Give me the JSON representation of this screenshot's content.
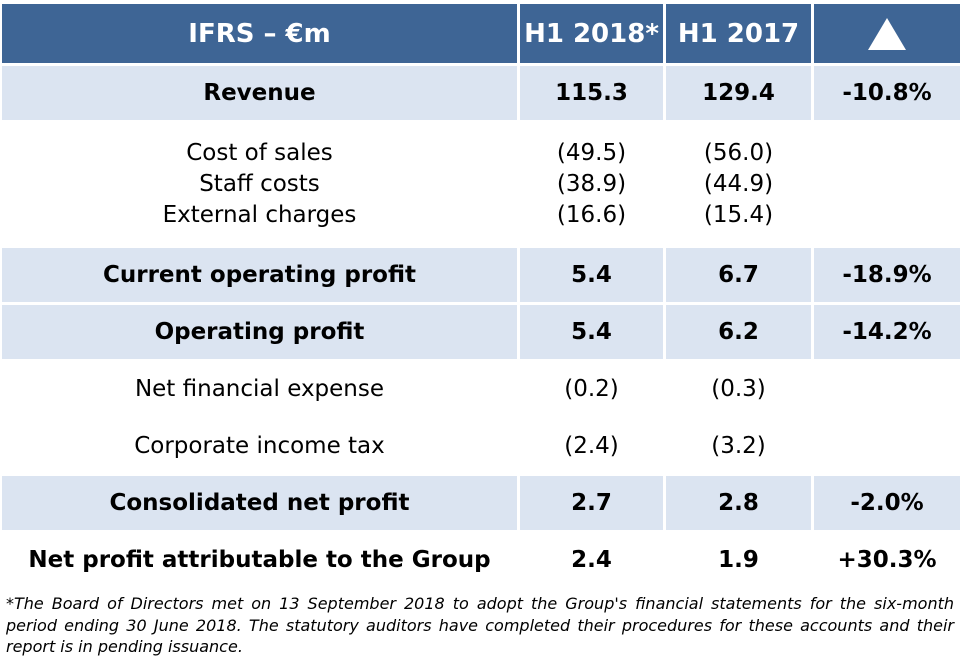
{
  "table": {
    "header": {
      "label": "IFRS – €m",
      "col1": "H1 2018*",
      "col2": "H1 2017",
      "change_icon": "up-triangle-icon"
    },
    "rows": [
      {
        "label": "Revenue",
        "h1_2018": "115.3",
        "h1_2017": "129.4",
        "change": "-10.8%"
      },
      {
        "labels": [
          "Cost of sales",
          "Staff costs",
          "External charges"
        ],
        "h1_2018": [
          "(49.5)",
          "(38.9)",
          "(16.6)"
        ],
        "h1_2017": [
          "(56.0)",
          "(44.9)",
          "(15.4)"
        ]
      },
      {
        "label": "Current operating profit",
        "h1_2018": "5.4",
        "h1_2017": "6.7",
        "change": "-18.9%"
      },
      {
        "label": "Operating profit",
        "h1_2018": "5.4",
        "h1_2017": "6.2",
        "change": "-14.2%"
      },
      {
        "label": "Net financial expense",
        "h1_2018": "(0.2)",
        "h1_2017": "(0.3)",
        "change": ""
      },
      {
        "label": "Corporate income tax",
        "h1_2018": "(2.4)",
        "h1_2017": "(3.2)",
        "change": ""
      },
      {
        "label": "Consolidated net profit",
        "h1_2018": "2.7",
        "h1_2017": "2.8",
        "change": "-2.0%"
      },
      {
        "label": "Net profit attributable to the Group",
        "h1_2018": "2.4",
        "h1_2017": "1.9",
        "change": "+30.3%"
      }
    ]
  },
  "footnote": "*The Board of Directors met on 13 September 2018 to adopt the Group's financial statements for the six-month period ending 30 June 2018. The statutory auditors have completed their procedures for these accounts and their report is in pending issuance.",
  "colors": {
    "header_bg": "#3e6595",
    "highlight_bg": "#dbe4f1",
    "header_text": "#ffffff"
  }
}
